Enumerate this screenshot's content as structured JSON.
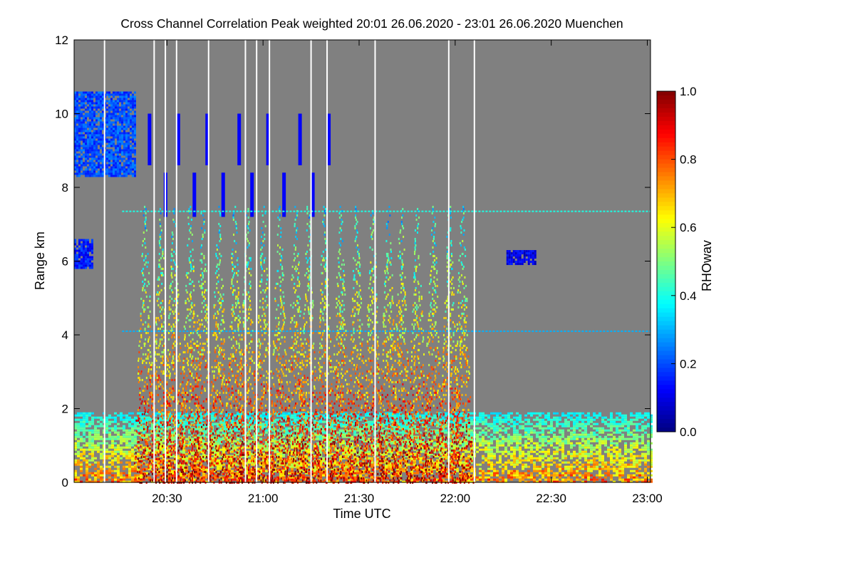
{
  "chart_data": {
    "type": "heatmap",
    "title": "Cross Channel Correlation Peak weighted   20:01 26.06.2020 - 23:01 26.06.2020 Muenchen",
    "xlabel": "Time UTC",
    "ylabel": "Range km",
    "x_range_minutes": [
      1201,
      1381
    ],
    "x_ticks": [
      {
        "label": "20:30",
        "minutes": 1230
      },
      {
        "label": "21:00",
        "minutes": 1260
      },
      {
        "label": "21:30",
        "minutes": 1290
      },
      {
        "label": "22:00",
        "minutes": 1320
      },
      {
        "label": "22:30",
        "minutes": 1350
      },
      {
        "label": "23:00",
        "minutes": 1380
      }
    ],
    "y_range_km": [
      0,
      12
    ],
    "y_ticks": [
      0,
      2,
      4,
      6,
      8,
      10,
      12
    ],
    "colorbar": {
      "label": "RHOwav",
      "range": [
        0.0,
        1.0
      ],
      "ticks": [
        "0.0",
        "0.2",
        "0.4",
        "0.6",
        "0.8",
        "1.0"
      ],
      "colormap": "jet"
    },
    "background_color": "#808080",
    "data_gap_minutes": [
      1210.5,
      1226,
      1229.5,
      1233,
      1243,
      1254.5,
      1258,
      1262,
      1275,
      1280,
      1295,
      1318,
      1326
    ],
    "precipitation_columns_minutes": [
      1223,
      1228,
      1232,
      1237,
      1241,
      1246,
      1251,
      1255,
      1260,
      1265,
      1270,
      1274,
      1279,
      1284,
      1289,
      1294,
      1299,
      1303,
      1308,
      1313,
      1318,
      1322
    ],
    "cloud_regions": [
      {
        "t_start_min": 1201,
        "t_end_min": 1220,
        "z_bottom_km": 8.3,
        "z_top_km": 10.6,
        "rho": 0.2
      },
      {
        "t_start_min": 1201,
        "t_end_min": 1207,
        "z_bottom_km": 5.8,
        "z_top_km": 6.6,
        "rho": 0.15
      },
      {
        "t_start_min": 1336,
        "t_end_min": 1345,
        "z_bottom_km": 5.9,
        "z_top_km": 6.3,
        "rho": 0.1
      }
    ],
    "persistent_layers_km": [
      {
        "z_km": 7.35,
        "rho": 0.4
      },
      {
        "z_km": 4.1,
        "rho": 0.3
      }
    ],
    "boundary_layer": {
      "top_km": 1.9,
      "rho_range": [
        0.2,
        0.9
      ]
    }
  }
}
